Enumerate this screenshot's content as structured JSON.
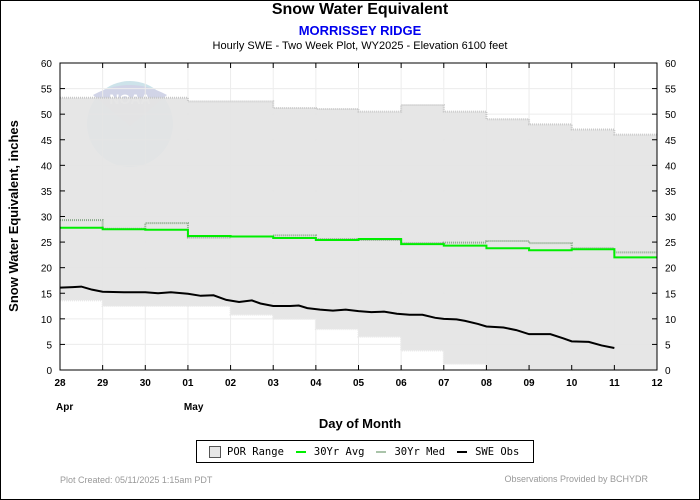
{
  "header": {
    "title": "Snow Water Equivalent",
    "station": "MORRISSEY RIDGE",
    "description": "Hourly SWE - Two Week Plot, WY2025 -  Elevation 6100 feet"
  },
  "legend": {
    "items": [
      {
        "label": "POR Range",
        "color": "#e6e6e6"
      },
      {
        "label": "30Yr Avg",
        "color": "#00ee00"
      },
      {
        "label": "30Yr Med",
        "color": "#99bb99"
      },
      {
        "label": "SWE Obs",
        "color": "#000000"
      }
    ]
  },
  "footer": {
    "created": "Plot Created: 05/11/2025 1:15am PDT",
    "provider": "Observations Provided by BCHYDR"
  },
  "watermark": "NOAA",
  "chart_data": {
    "type": "line",
    "title": "Snow Water Equivalent",
    "subtitle": "MORRISSEY RIDGE",
    "xlabel": "Day of Month",
    "ylabel": "Snow Water Equivalent, inches",
    "ylim": [
      0,
      60
    ],
    "yticks": [
      0,
      5,
      10,
      15,
      20,
      25,
      30,
      35,
      40,
      45,
      50,
      55,
      60
    ],
    "xticks": [
      "28",
      "29",
      "30",
      "01",
      "02",
      "03",
      "04",
      "05",
      "06",
      "07",
      "08",
      "09",
      "10",
      "11",
      "12"
    ],
    "month_labels": [
      {
        "at": "28",
        "label": "Apr"
      },
      {
        "at": "01",
        "label": "May"
      }
    ],
    "grid": true,
    "legend_position": "bottom",
    "series": [
      {
        "name": "POR Range max",
        "day_step_values": [
          53.2,
          53.2,
          53.2,
          52.5,
          52.5,
          51.2,
          51.0,
          50.5,
          51.8,
          50.5,
          49.0,
          48.0,
          47.0,
          46.0
        ]
      },
      {
        "name": "POR Range min",
        "day_step_values": [
          13.6,
          12.5,
          12.5,
          12.5,
          10.8,
          10.0,
          8.0,
          6.5,
          3.8,
          1.2,
          0.2,
          0.2,
          0.0,
          0.0
        ]
      },
      {
        "name": "30Yr Avg",
        "day_step_values": [
          27.8,
          27.5,
          27.4,
          26.2,
          26.1,
          25.8,
          25.4,
          25.6,
          24.6,
          24.3,
          23.8,
          23.4,
          23.6,
          22.0
        ]
      },
      {
        "name": "30Yr Med",
        "day_step_values": [
          29.3,
          27.6,
          28.7,
          25.9,
          26.1,
          26.3,
          25.6,
          25.4,
          24.8,
          24.9,
          25.2,
          24.8,
          23.8,
          23.0
        ]
      },
      {
        "name": "SWE Obs",
        "points": [
          [
            0.0,
            16.1
          ],
          [
            0.3,
            16.2
          ],
          [
            0.5,
            16.3
          ],
          [
            0.75,
            15.7
          ],
          [
            1.0,
            15.3
          ],
          [
            1.5,
            15.2
          ],
          [
            2.0,
            15.2
          ],
          [
            2.3,
            15.0
          ],
          [
            2.6,
            15.2
          ],
          [
            3.0,
            14.9
          ],
          [
            3.3,
            14.5
          ],
          [
            3.6,
            14.6
          ],
          [
            3.9,
            13.7
          ],
          [
            4.2,
            13.3
          ],
          [
            4.5,
            13.6
          ],
          [
            4.7,
            13.0
          ],
          [
            5.0,
            12.5
          ],
          [
            5.4,
            12.5
          ],
          [
            5.6,
            12.6
          ],
          [
            5.8,
            12.1
          ],
          [
            6.1,
            11.8
          ],
          [
            6.4,
            11.6
          ],
          [
            6.7,
            11.8
          ],
          [
            7.0,
            11.5
          ],
          [
            7.3,
            11.3
          ],
          [
            7.6,
            11.4
          ],
          [
            7.9,
            11.0
          ],
          [
            8.2,
            10.8
          ],
          [
            8.5,
            10.8
          ],
          [
            8.8,
            10.2
          ],
          [
            9.0,
            10.0
          ],
          [
            9.3,
            9.9
          ],
          [
            9.5,
            9.6
          ],
          [
            9.8,
            9.0
          ],
          [
            10.0,
            8.5
          ],
          [
            10.4,
            8.3
          ],
          [
            10.7,
            7.8
          ],
          [
            11.0,
            7.0
          ],
          [
            11.5,
            7.0
          ],
          [
            11.8,
            6.2
          ],
          [
            12.0,
            5.6
          ],
          [
            12.4,
            5.5
          ],
          [
            12.7,
            4.8
          ],
          [
            13.0,
            4.3
          ]
        ]
      }
    ]
  }
}
